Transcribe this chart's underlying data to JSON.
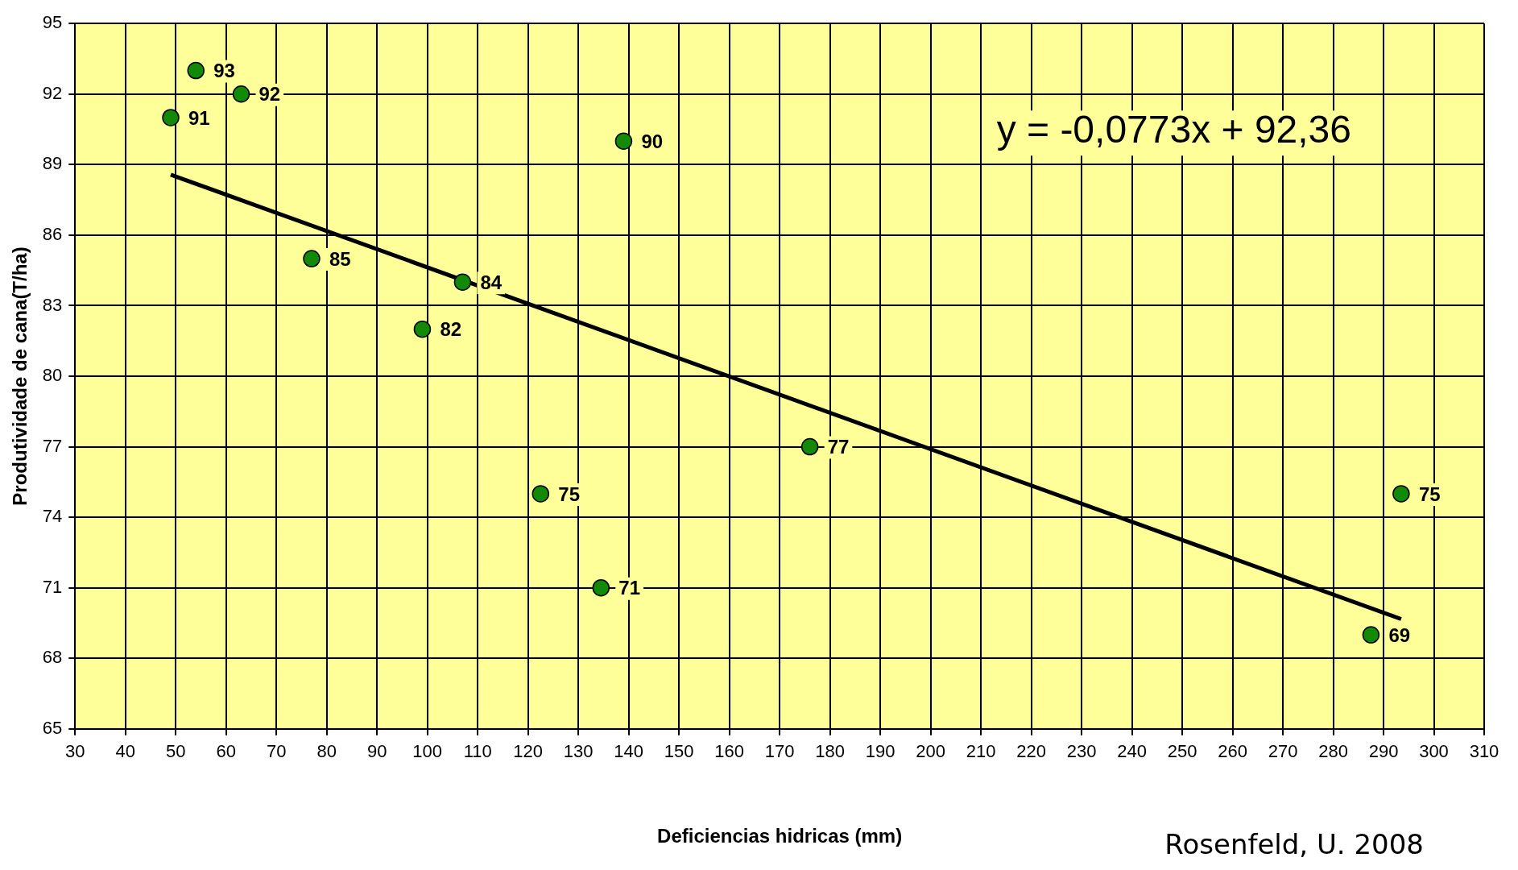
{
  "chart_data": {
    "type": "scatter",
    "xlabel": "Deficiencias hidricas (mm)",
    "ylabel": "Produtividade de cana(T/ha)",
    "annotations": [
      "y = -0,0773x + 92,36",
      "Rosenfeld, U. 2008"
    ],
    "series": [
      {
        "type": "scatter",
        "color": "#138a07",
        "marker": "circle",
        "x": [
          54,
          63,
          49,
          139,
          77,
          107,
          99,
          176,
          122.5,
          134.5,
          293.5,
          287.5
        ],
        "values": [
          93,
          92,
          91,
          90,
          85,
          84,
          82,
          77,
          75,
          71,
          75,
          69
        ],
        "value_labels": [
          "93",
          "92",
          "91",
          "90",
          "85",
          "84",
          "82",
          "77",
          "75",
          "71",
          "75",
          "69"
        ]
      },
      {
        "type": "line",
        "color": "#000000",
        "marker": "none",
        "x": [
          49,
          293.5
        ],
        "values": [
          88.57,
          69.67
        ]
      }
    ],
    "xlim": [
      30,
      310
    ],
    "xticks": [
      30,
      40,
      50,
      60,
      70,
      80,
      90,
      100,
      110,
      120,
      130,
      140,
      150,
      160,
      170,
      180,
      190,
      200,
      210,
      220,
      230,
      240,
      250,
      260,
      270,
      280,
      290,
      300,
      310
    ],
    "ylim": [
      65,
      95
    ],
    "yticks": [
      65,
      68,
      71,
      74,
      77,
      80,
      83,
      86,
      89,
      92,
      95
    ],
    "grid": true,
    "legend": false
  }
}
